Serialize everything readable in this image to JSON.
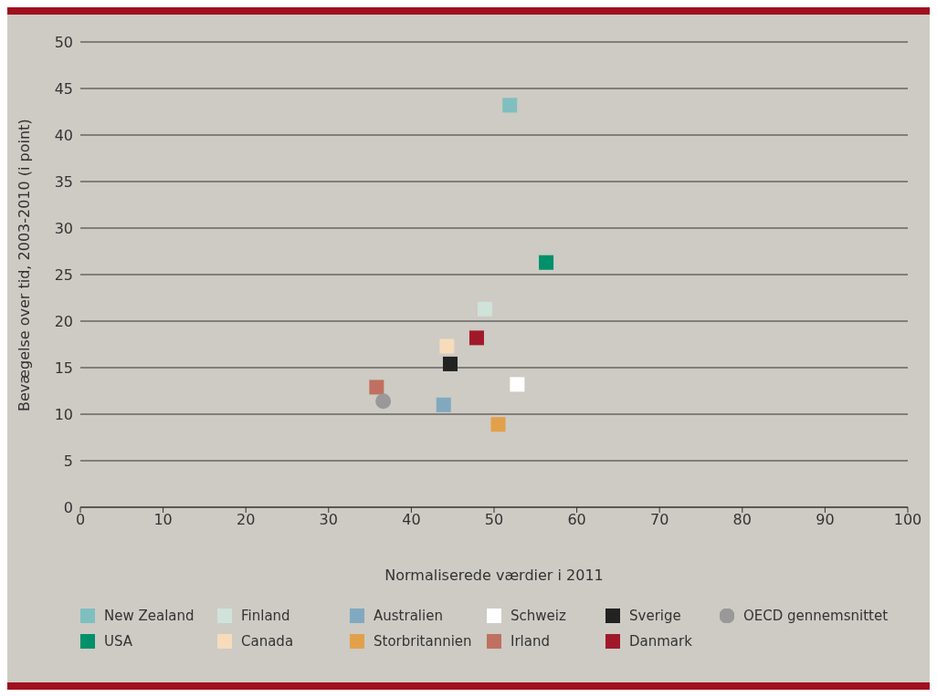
{
  "chart_data": {
    "type": "scatter",
    "xlabel": "Normaliserede værdier i 2011",
    "ylabel": "Bevægelse over tid, 2003-2010 (i point)",
    "xlim": [
      0,
      100
    ],
    "xticks": [
      0,
      10,
      20,
      30,
      40,
      50,
      60,
      70,
      80,
      90,
      100
    ],
    "ylim": [
      0,
      50
    ],
    "yticks": [
      0,
      5,
      10,
      15,
      20,
      25,
      30,
      35,
      40,
      45,
      50
    ],
    "grid": "y",
    "legend": "bottom",
    "marker": "square",
    "series": [
      {
        "name": "New Zealand",
        "color": "#7fbfbf",
        "x": [
          51.9
        ],
        "values": [
          43.2
        ]
      },
      {
        "name": "USA",
        "color": "#00906a",
        "x": [
          56.3
        ],
        "values": [
          26.3
        ]
      },
      {
        "name": "Finland",
        "color": "#cfe3da",
        "x": [
          48.9
        ],
        "values": [
          21.3
        ]
      },
      {
        "name": "Canada",
        "color": "#f7dcbb",
        "x": [
          44.3
        ],
        "values": [
          17.3
        ]
      },
      {
        "name": "Australien",
        "color": "#80a9c0",
        "x": [
          43.9
        ],
        "values": [
          11.0
        ]
      },
      {
        "name": "Storbritannien",
        "color": "#e3a04a",
        "x": [
          50.5
        ],
        "values": [
          8.9
        ]
      },
      {
        "name": "Schweiz",
        "color": "#ffffff",
        "x": [
          52.8
        ],
        "values": [
          13.2
        ]
      },
      {
        "name": "Irland",
        "color": "#c07060",
        "x": [
          35.8
        ],
        "values": [
          12.9
        ]
      },
      {
        "name": "Sverige",
        "color": "#222222",
        "x": [
          44.7
        ],
        "values": [
          15.4
        ]
      },
      {
        "name": "Danmark",
        "color": "#a0192a",
        "x": [
          47.9
        ],
        "values": [
          18.2
        ]
      },
      {
        "name": "OECD gennemsnittet",
        "color": "#999999",
        "x": [
          36.6
        ],
        "values": [
          11.4
        ],
        "marker": "circle"
      }
    ]
  }
}
